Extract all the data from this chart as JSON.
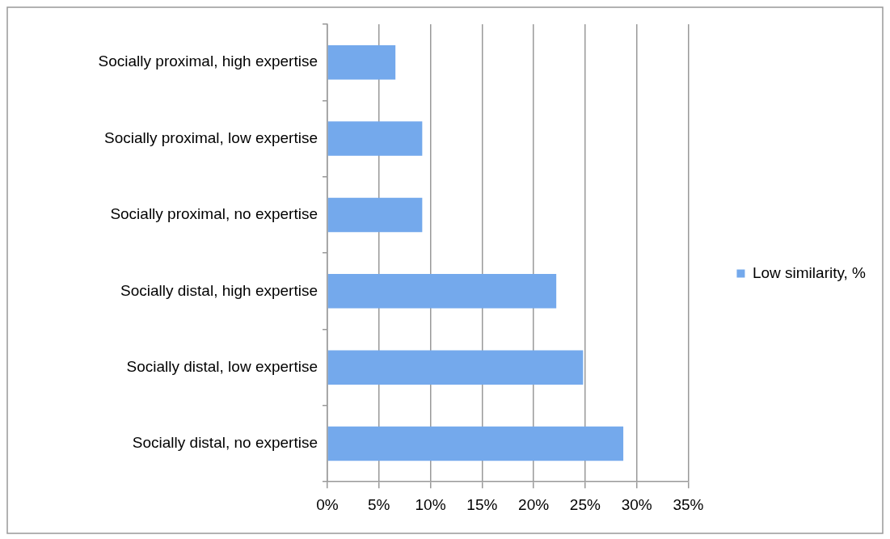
{
  "chart_data": {
    "type": "bar",
    "orientation": "horizontal",
    "categories": [
      "Socially proximal, high expertise",
      "Socially proximal, low expertise",
      "Socially proximal, no expertise",
      "Socially distal, high expertise",
      "Socially distal, low expertise",
      "Socially distal, no expertise"
    ],
    "series": [
      {
        "name": "Low similarity, %",
        "color": "#74a9ec",
        "values": [
          6.6,
          9.2,
          9.2,
          22.2,
          24.8,
          28.7
        ]
      }
    ],
    "xlim": [
      0,
      35
    ],
    "xticks": [
      {
        "value": 0,
        "label": "0%"
      },
      {
        "value": 5,
        "label": "5%"
      },
      {
        "value": 10,
        "label": "10%"
      },
      {
        "value": 15,
        "label": "15%"
      },
      {
        "value": 20,
        "label": "20%"
      },
      {
        "value": 25,
        "label": "25%"
      },
      {
        "value": 30,
        "label": "30%"
      },
      {
        "value": 35,
        "label": "35%"
      }
    ],
    "grid": "x",
    "legend": "right"
  }
}
